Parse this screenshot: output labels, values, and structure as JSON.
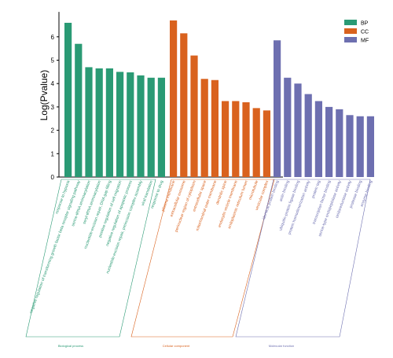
{
  "chart_data": {
    "type": "bar",
    "ylabel": "Log(Pvalue)",
    "ylim": [
      0,
      7
    ],
    "yticks": [
      0,
      1,
      2,
      3,
      4,
      5,
      6
    ],
    "legend_placement": "top-right",
    "grid": false,
    "series": [
      {
        "name": "BP",
        "color": "#2a9a74",
        "group_label": "Biological process",
        "categories": [
          "response to hypoxia",
          "negative regulation of transforming growth factor beta receptor signaling pathway",
          "serine-tRNA aminoacylation",
          "seryl-tRNA aminoacylation",
          "nucleotide-excision repair, DNA gap filling",
          "positive regulation of cell migration",
          "negative regulation of apoptotic process",
          "nucleotide-excision repair, preincision complex assembly",
          "viral translation",
          "response to drug"
        ],
        "values": [
          6.6,
          5.7,
          4.7,
          4.65,
          4.65,
          4.5,
          4.48,
          4.35,
          4.25,
          4.25
        ]
      },
      {
        "name": "CC",
        "color": "#d9621e",
        "group_label": "Cellular component",
        "categories": [
          "plasma membrane",
          "extracellular exosome",
          "perinuclear region of cytoplasm",
          "extracellular space",
          "mitochondrial outer membrane",
          "dendritic spine",
          "endocytic vesicle membrane",
          "endoplasmic reticulum lumen",
          "microtubule",
          "vesicular complex"
        ],
        "values": [
          6.7,
          6.15,
          5.2,
          4.2,
          4.15,
          3.25,
          3.25,
          3.2,
          2.95,
          2.85
        ]
      },
      {
        "name": "MF",
        "color": "#6d6fb0",
        "group_label": "Molecular function",
        "categories": [
          "identical protein binding",
          "actin binding",
          "ubiquitin-protein ligase binding",
          "protein homodimerization activity",
          "protein tag",
          "transcription factor binding",
          "serine-type endopeptidase activity",
          "oxidoreductase activity",
          "protease binding",
          "enzyme binding"
        ],
        "values": [
          5.85,
          4.25,
          4.0,
          3.55,
          3.25,
          3.0,
          2.9,
          2.65,
          2.6,
          2.6
        ]
      }
    ]
  }
}
